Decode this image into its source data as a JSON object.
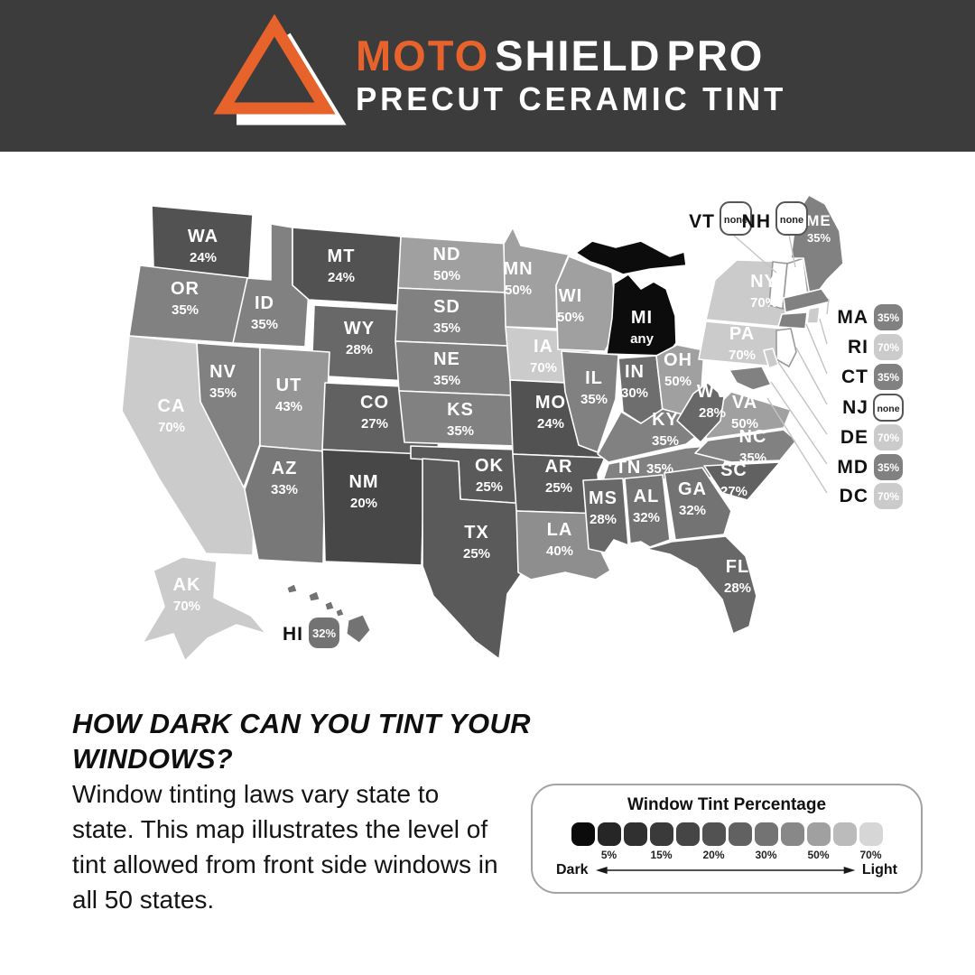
{
  "header": {
    "brand": [
      {
        "text": "MOTO",
        "color": "#e8632c"
      },
      {
        "text": "SHIELD",
        "color": "#ffffff"
      },
      {
        "text": "PRO",
        "color": "#ffffff"
      }
    ],
    "tagline": "PRECUT CERAMIC TINT",
    "accent_color": "#e8632c",
    "background_color": "#3c3c3c"
  },
  "map": {
    "states": [
      {
        "abbr": "WA",
        "value": "24%"
      },
      {
        "abbr": "OR",
        "value": "35%"
      },
      {
        "abbr": "CA",
        "value": "70%"
      },
      {
        "abbr": "ID",
        "value": "35%"
      },
      {
        "abbr": "NV",
        "value": "35%"
      },
      {
        "abbr": "UT",
        "value": "43%"
      },
      {
        "abbr": "AZ",
        "value": "33%"
      },
      {
        "abbr": "MT",
        "value": "24%"
      },
      {
        "abbr": "WY",
        "value": "28%"
      },
      {
        "abbr": "CO",
        "value": "27%"
      },
      {
        "abbr": "NM",
        "value": "20%"
      },
      {
        "abbr": "ND",
        "value": "50%"
      },
      {
        "abbr": "SD",
        "value": "35%"
      },
      {
        "abbr": "NE",
        "value": "35%"
      },
      {
        "abbr": "KS",
        "value": "35%"
      },
      {
        "abbr": "OK",
        "value": "25%"
      },
      {
        "abbr": "TX",
        "value": "25%"
      },
      {
        "abbr": "MN",
        "value": "50%"
      },
      {
        "abbr": "IA",
        "value": "70%"
      },
      {
        "abbr": "MO",
        "value": "24%"
      },
      {
        "abbr": "AR",
        "value": "25%"
      },
      {
        "abbr": "LA",
        "value": "40%"
      },
      {
        "abbr": "WI",
        "value": "50%"
      },
      {
        "abbr": "MI",
        "value": "any"
      },
      {
        "abbr": "IL",
        "value": "35%"
      },
      {
        "abbr": "IN",
        "value": "30%"
      },
      {
        "abbr": "OH",
        "value": "50%"
      },
      {
        "abbr": "KY",
        "value": "35%"
      },
      {
        "abbr": "TN",
        "value": "35%"
      },
      {
        "abbr": "MS",
        "value": "28%"
      },
      {
        "abbr": "AL",
        "value": "32%"
      },
      {
        "abbr": "GA",
        "value": "32%"
      },
      {
        "abbr": "FL",
        "value": "28%"
      },
      {
        "abbr": "SC",
        "value": "27%"
      },
      {
        "abbr": "NC",
        "value": "35%"
      },
      {
        "abbr": "VA",
        "value": "50%"
      },
      {
        "abbr": "WV",
        "value": "28%"
      },
      {
        "abbr": "PA",
        "value": "70%"
      },
      {
        "abbr": "NY",
        "value": "70%"
      },
      {
        "abbr": "ME",
        "value": "35%"
      },
      {
        "abbr": "AK",
        "value": "70%"
      }
    ],
    "callouts_top": [
      {
        "abbr": "VT",
        "value": "none"
      },
      {
        "abbr": "NH",
        "value": "none"
      }
    ],
    "callouts_right": [
      {
        "abbr": "MA",
        "value": "35%"
      },
      {
        "abbr": "RI",
        "value": "70%"
      },
      {
        "abbr": "CT",
        "value": "35%"
      },
      {
        "abbr": "NJ",
        "value": "none"
      },
      {
        "abbr": "DE",
        "value": "70%"
      },
      {
        "abbr": "MD",
        "value": "35%"
      },
      {
        "abbr": "DC",
        "value": "70%"
      }
    ],
    "hawaii": {
      "abbr": "HI",
      "value": "32%"
    },
    "value_colors": {
      "none": "#ffffff",
      "any": "#0c0c0c",
      "20%": "#474747",
      "24%": "#525252",
      "25%": "#5a5a5a",
      "27%": "#616161",
      "28%": "#686868",
      "30%": "#6e6e6e",
      "32%": "#737373",
      "33%": "#787878",
      "35%": "#818181",
      "40%": "#8e8e8e",
      "43%": "#969696",
      "50%": "#a0a0a0",
      "70%": "#cbcbcb"
    }
  },
  "info": {
    "heading": "HOW DARK CAN YOU TINT YOUR WINDOWS?",
    "body": "Window tinting laws vary state to state. This map illustrates the level of tint allowed from front side windows in all 50 states."
  },
  "legend": {
    "title": "Window Tint Percentage",
    "swatches": [
      "#0b0b0b",
      "#262626",
      "#303030",
      "#3a3a3a",
      "#454545",
      "#525252",
      "#616161",
      "#737373",
      "#888888",
      "#a0a0a0",
      "#bbbbbb",
      "#d6d6d6"
    ],
    "tick_labels": [
      "5%",
      "15%",
      "20%",
      "30%",
      "50%",
      "70%"
    ],
    "dark_label": "Dark",
    "light_label": "Light"
  }
}
